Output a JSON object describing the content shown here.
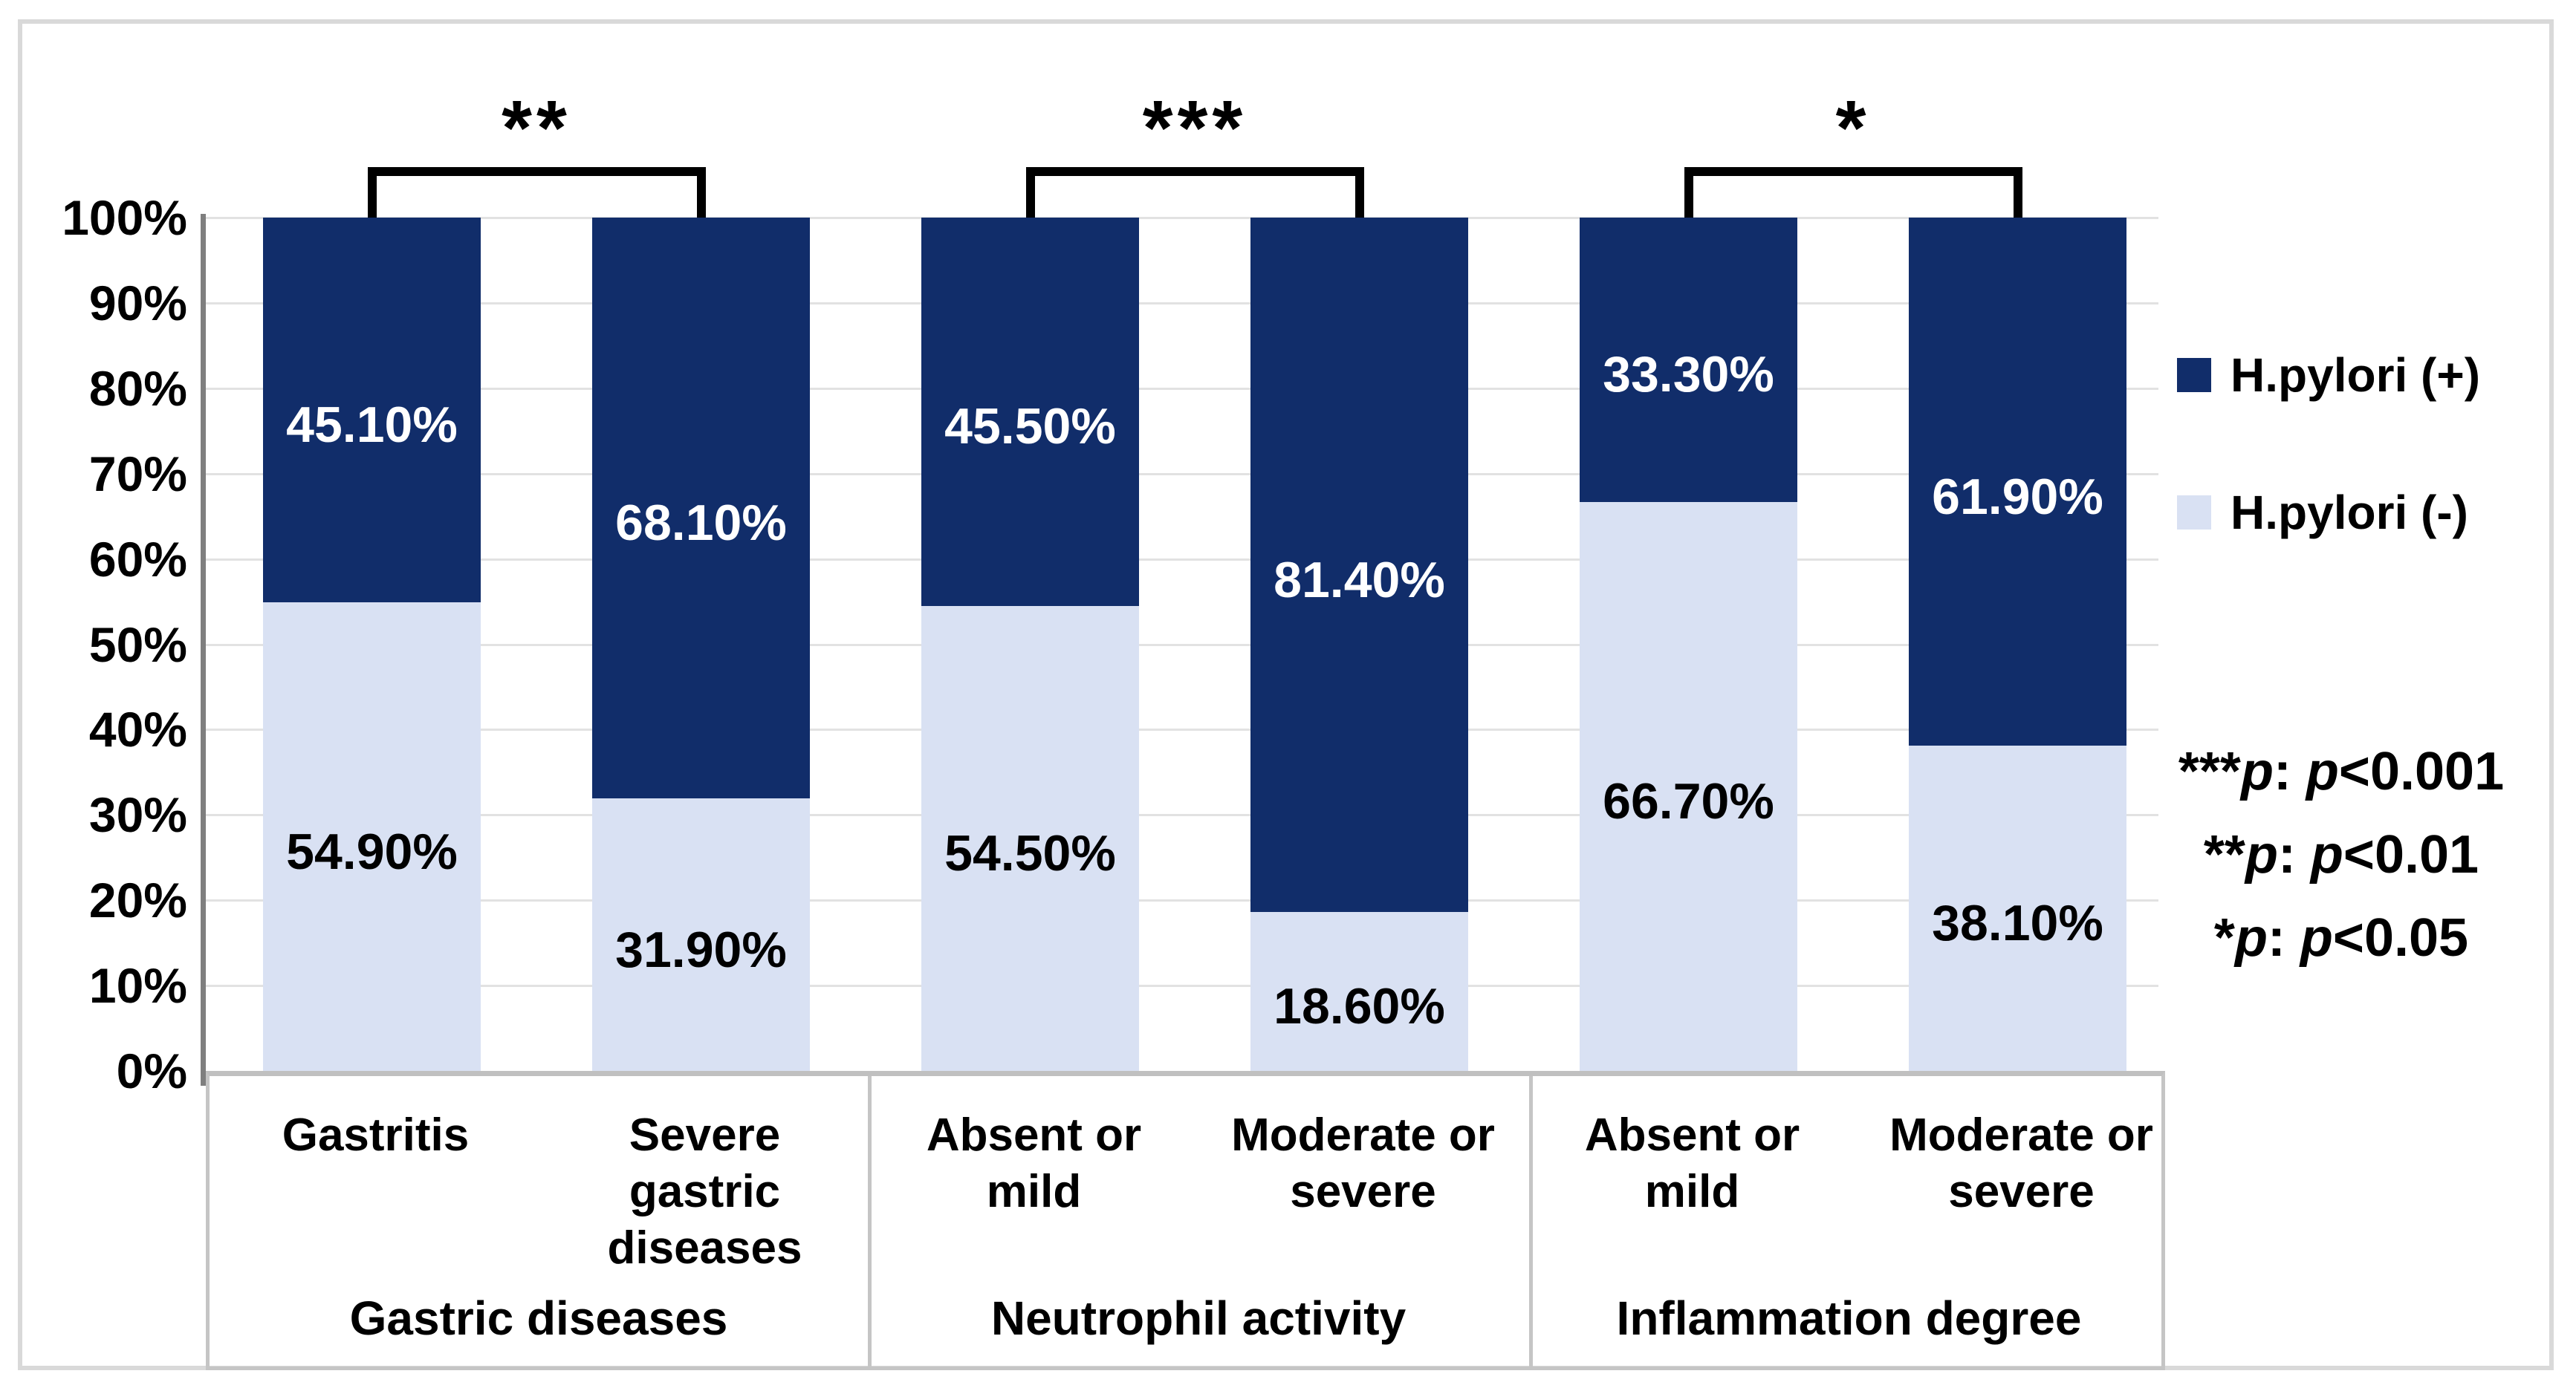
{
  "chart_data": {
    "type": "bar",
    "subtype": "stacked-100-percent-column",
    "title": "",
    "xlabel": "",
    "ylabel": "",
    "ylim": [
      0,
      100
    ],
    "grid": true,
    "legend_position": "right",
    "y_tick_labels": [
      "0%",
      "10%",
      "20%",
      "30%",
      "40%",
      "50%",
      "60%",
      "70%",
      "80%",
      "90%",
      "100%"
    ],
    "categories": [
      "Gastritis",
      "Severe gastric diseases",
      "Absent or mild",
      "Moderate or severe",
      "Absent or mild",
      "Moderate or severe"
    ],
    "category_groups": [
      {
        "label": "Gastric diseases",
        "significance": "**",
        "category_indexes": [
          0,
          1
        ]
      },
      {
        "label": "Neutrophil activity",
        "significance": "***",
        "category_indexes": [
          2,
          3
        ]
      },
      {
        "label": "Inflammation degree",
        "significance": "*",
        "category_indexes": [
          4,
          5
        ]
      }
    ],
    "series": [
      {
        "name": "H.pylori (+)",
        "color": "#112d6a",
        "values": [
          45.1,
          68.1,
          45.5,
          81.4,
          33.3,
          61.9
        ],
        "labels": [
          "45.10%",
          "68.10%",
          "45.50%",
          "81.40%",
          "33.30%",
          "61.90%"
        ]
      },
      {
        "name": "H.pylori (-)",
        "color": "#d9e1f3",
        "values": [
          54.9,
          31.9,
          54.5,
          18.6,
          66.7,
          38.1
        ],
        "labels": [
          "54.90%",
          "31.90%",
          "54.50%",
          "18.60%",
          "66.70%",
          "38.10%"
        ]
      }
    ]
  },
  "legend": {
    "items": [
      {
        "label": "H.pylori (+)",
        "series_index": 0
      },
      {
        "label": "H.pylori (-)",
        "series_index": 1
      }
    ]
  },
  "significance_notes": [
    {
      "stars": "***",
      "p_label": "p",
      "colon": ": ",
      "p_italic": "p",
      "threshold": "<0.001"
    },
    {
      "stars": "**",
      "p_label": "p",
      "colon": ": ",
      "p_italic": "p",
      "threshold": "<0.01"
    },
    {
      "stars": "*",
      "p_label": "p",
      "colon": ": ",
      "p_italic": "p",
      "threshold": "<0.05"
    }
  ],
  "colors": {
    "positive": "#112d6a",
    "negative": "#d9e1f3",
    "gridline": "#e2e2e2",
    "axis": "#7f7f7f",
    "table_border": "#c5c5c5",
    "frame_border": "#d9d9d9",
    "background": "#ffffff"
  }
}
